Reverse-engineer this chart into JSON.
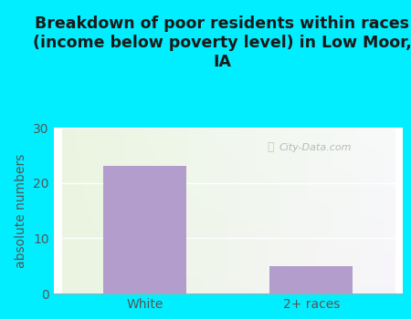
{
  "title": "Breakdown of poor residents within races\n(income below poverty level) in Low Moor,\nIA",
  "categories": [
    "White",
    "2+ races"
  ],
  "values": [
    23,
    5
  ],
  "bar_color": "#b39dcc",
  "ylabel": "absolute numbers",
  "ylim": [
    0,
    30
  ],
  "yticks": [
    0,
    10,
    20,
    30
  ],
  "background_outer": "#00eeff",
  "title_color": "#1a1a1a",
  "axis_text_color": "#555555",
  "watermark": "City-Data.com",
  "title_fontsize": 12.5,
  "label_fontsize": 10,
  "tick_fontsize": 10,
  "grid_color": "#dddddd",
  "bar_width": 0.5
}
